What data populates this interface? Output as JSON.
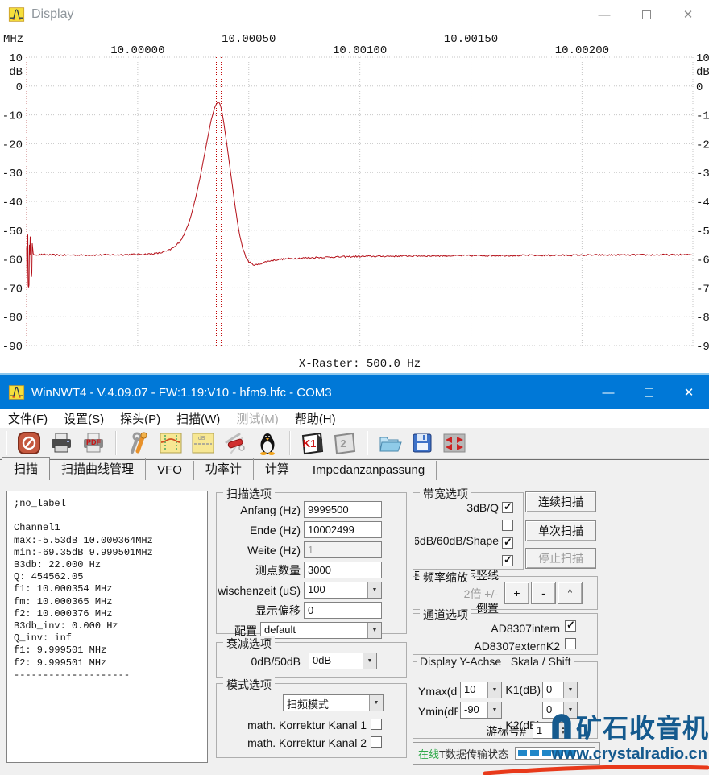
{
  "display_window": {
    "title": "Display",
    "chart_data": {
      "type": "line",
      "x_unit": "MHz",
      "y_unit": "dB",
      "x_range_mhz": [
        9.9995,
        10.002499
      ],
      "ylim": [
        10,
        -90
      ],
      "x_ticks": [
        {
          "mhz": 10.0,
          "label": "10.00000",
          "row": "low"
        },
        {
          "mhz": 10.0005,
          "label": "10.00050",
          "row": "high"
        },
        {
          "mhz": 10.001,
          "label": "10.00100",
          "row": "low"
        },
        {
          "mhz": 10.0015,
          "label": "10.00150",
          "row": "high"
        },
        {
          "mhz": 10.002,
          "label": "10.00200",
          "row": "low"
        }
      ],
      "y_ticks": [
        10,
        0,
        -10,
        -20,
        -30,
        -40,
        -50,
        -60,
        -70,
        -80,
        -90
      ],
      "markers_mhz": [
        9.999501,
        10.000354,
        10.000376
      ],
      "x_raster_label": "X-Raster: 500.0 Hz",
      "trace_color": "#b40f18",
      "marker_color": "#c00000",
      "grid_color": "#c6c6c6",
      "series": [
        {
          "name": "Channel1",
          "anchors_mhz_db": [
            [
              9.9995,
              -56
            ],
            [
              9.99953,
              -58.4
            ],
            [
              9.99965,
              -58.6
            ],
            [
              9.9998,
              -58.6
            ],
            [
              9.99995,
              -58.45
            ],
            [
              10.00005,
              -58.25
            ],
            [
              10.0001,
              -57.9
            ],
            [
              10.00014,
              -57.0
            ],
            [
              10.00017,
              -55.6
            ],
            [
              10.0002,
              -52.8
            ],
            [
              10.00022,
              -49.5
            ],
            [
              10.00024,
              -45.0
            ],
            [
              10.00026,
              -39.0
            ],
            [
              10.00028,
              -32.0
            ],
            [
              10.0003,
              -24.0
            ],
            [
              10.000315,
              -18.0
            ],
            [
              10.00033,
              -12.0
            ],
            [
              10.000345,
              -7.8
            ],
            [
              10.000356,
              -5.9
            ],
            [
              10.000364,
              -5.53
            ],
            [
              10.000371,
              -6.3
            ],
            [
              10.000379,
              -8.8
            ],
            [
              10.000388,
              -13.0
            ],
            [
              10.0004,
              -19.5
            ],
            [
              10.000413,
              -27.0
            ],
            [
              10.000426,
              -34.5
            ],
            [
              10.00044,
              -42.5
            ],
            [
              10.000455,
              -50.0
            ],
            [
              10.00047,
              -55.5
            ],
            [
              10.000485,
              -59.0
            ],
            [
              10.0005,
              -61.0
            ],
            [
              10.000518,
              -61.9
            ],
            [
              10.00054,
              -62.0
            ],
            [
              10.000565,
              -61.2
            ],
            [
              10.0006,
              -60.5
            ],
            [
              10.00065,
              -60.0
            ],
            [
              10.00072,
              -59.7
            ],
            [
              10.0008,
              -59.45
            ],
            [
              10.0009,
              -59.25
            ],
            [
              10.001,
              -59.1
            ],
            [
              10.0012,
              -58.95
            ],
            [
              10.0015,
              -58.8
            ],
            [
              10.0018,
              -58.7
            ],
            [
              10.0021,
              -58.6
            ],
            [
              10.002499,
              -58.5
            ]
          ]
        }
      ],
      "noise": {
        "flat_db": 0.28,
        "slope_db": 0.07,
        "burst": {
          "start_mhz": 9.999502,
          "end_mhz": 9.999526,
          "step_mhz": 1.8e-06,
          "db_top": -50.5,
          "db_bottom": -70
        }
      }
    }
  },
  "main_window": {
    "title": "WinNWT4 - V.4.09.07 - FW:1.19:V10 - hfm9.hfc - COM3",
    "menus": [
      {
        "label": "文件(F)"
      },
      {
        "label": "设置(S)"
      },
      {
        "label": "探头(P)"
      },
      {
        "label": "扫描(W)"
      },
      {
        "label": "测试(M)",
        "disabled": true
      },
      {
        "label": "帮助(H)"
      }
    ],
    "toolbar_icons": [
      "power",
      "print",
      "print-pdf",
      "tools",
      "sweep-display",
      "db-scale",
      "swiss-knife",
      "penguin",
      "k1-calibration",
      "k2-calibration",
      "open-folder",
      "save-disk",
      "span-resize"
    ],
    "tabs": [
      {
        "label": "扫描",
        "active": true
      },
      {
        "label": "扫描曲线管理"
      },
      {
        "label": "VFO"
      },
      {
        "label": "功率计"
      },
      {
        "label": "计算"
      },
      {
        "label": "Impedanzanpassung"
      }
    ],
    "results": {
      "lines": [
        ";no_label",
        "",
        "Channel1",
        "max:-5.53dB 10.000364MHz",
        "min:-69.35dB 9.999501MHz",
        "B3db: 22.000 Hz",
        "Q: 454562.05",
        "f1: 10.000354 MHz",
        "fm: 10.000365 MHz",
        "f2: 10.000376 MHz",
        "B3db_inv: 0.000 Hz",
        "Q_inv: inf",
        "f1: 9.999501 MHz",
        "f2: 9.999501 MHz",
        "--------------------"
      ]
    },
    "sweep_options": {
      "legend": "扫描选项",
      "rows": [
        {
          "label": "Anfang (Hz)",
          "value": "9999500"
        },
        {
          "label": "Ende (Hz)",
          "value": "10002499"
        },
        {
          "label": "Weite (Hz)",
          "value": "1",
          "disabled": true
        },
        {
          "label": "测点数量",
          "value": "3000"
        },
        {
          "label": "wischenzeit (uS)",
          "value": "100"
        },
        {
          "label": "显示偏移",
          "value": "0"
        },
        {
          "label": "配置",
          "value": "default"
        }
      ]
    },
    "attenuation": {
      "legend": "衰减选项",
      "label": "0dB/50dB",
      "value": "0dB"
    },
    "mode": {
      "legend": "模式选项",
      "combo_value": "扫频模式",
      "rows": [
        {
          "label": "math. Korrektur Kanal 1",
          "checked": false
        },
        {
          "label": "math. Korrektur Kanal 2",
          "checked": false
        }
      ]
    },
    "bandwidth": {
      "legend": "带宽选项",
      "rows": [
        {
          "label": "3dB/Q",
          "checked": true
        },
        {
          "label": "6dB/60dB/Shape",
          "checked": false
        },
        {
          "label": "在图像上显示竖线",
          "checked": true
        },
        {
          "label": "倒置",
          "checked": true
        }
      ]
    },
    "scan_buttons": [
      {
        "label": "连续扫描"
      },
      {
        "label": "单次扫描"
      },
      {
        "label": "停止扫描",
        "disabled": true
      }
    ],
    "freq_zoom": {
      "legend": "频率缩放",
      "label": "2倍 +/-",
      "buttons": [
        "+",
        "-",
        "^"
      ]
    },
    "channels": {
      "legend": "通道选项",
      "rows": [
        {
          "label": "AD8307intern",
          "checked": true
        },
        {
          "label": "AD8307externK2",
          "checked": false
        }
      ]
    },
    "y_axis": {
      "legend_left": "Display Y-Achse",
      "legend_right": "Skala / Shift",
      "ymax_label": "Ymax(dB)",
      "ymax_value": "10",
      "k1_label": "K1(dB)",
      "k1_value": "0",
      "ymin_label": "Ymin(dB)",
      "ymin_value": "-90",
      "k2_label": "K2(dB)",
      "k2_value": "0",
      "cursor_label": "游标号#",
      "cursor_value": "1"
    },
    "status": {
      "online": "在线",
      "text": "T数据传输状态"
    },
    "watermark": {
      "title": "矿石收音机",
      "url": "www.crystalradio.cn",
      "color": "#155a8e",
      "swoosh_color": "#e8391a"
    }
  }
}
